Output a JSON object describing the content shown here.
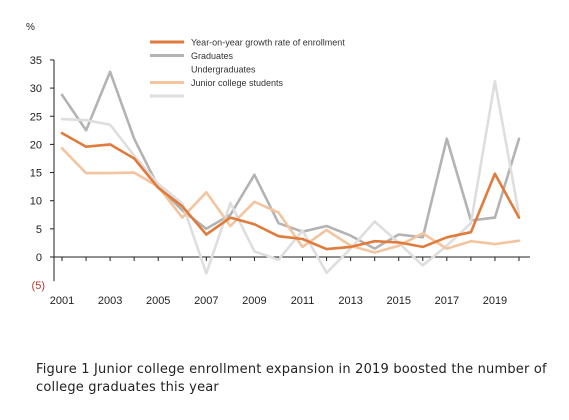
{
  "chart_data": {
    "type": "line",
    "ylabel": "%",
    "ylim": [
      -5,
      35
    ],
    "yticks": [
      35,
      30,
      25,
      20,
      15,
      10,
      5,
      0
    ],
    "ytick_labels": [
      "35",
      "30",
      "25",
      "20",
      "15",
      "10",
      "5",
      "0"
    ],
    "negative_tick": {
      "value": -5,
      "label": "(5)"
    },
    "xlim": [
      2001,
      2020
    ],
    "x": [
      2001,
      2002,
      2003,
      2004,
      2005,
      2006,
      2007,
      2008,
      2009,
      2010,
      2011,
      2012,
      2013,
      2014,
      2015,
      2016,
      2017,
      2018,
      2019,
      2020
    ],
    "xtick_values": [
      2001,
      2003,
      2005,
      2007,
      2009,
      2011,
      2013,
      2015,
      2017,
      2019
    ],
    "xtick_labels": [
      "2001",
      "2003",
      "2005",
      "2007",
      "2009",
      "2011",
      "2013",
      "2015",
      "2017",
      "2019"
    ],
    "grid": false,
    "legend_position": "top-center",
    "series": [
      {
        "name": "Graduates",
        "color": "#b3b3b3",
        "values": [
          28.8,
          22.5,
          32.9,
          21.0,
          12.5,
          8.3,
          5.0,
          7.5,
          14.6,
          6.0,
          4.5,
          5.5,
          3.8,
          1.5,
          4.0,
          3.5,
          21.0,
          6.5,
          7.0,
          21.0
        ]
      },
      {
        "name": "Undergraduates",
        "color": "#dedede",
        "values": [
          24.5,
          24.3,
          23.5,
          18.0,
          13.0,
          9.5,
          -2.9,
          9.6,
          1.0,
          -0.5,
          4.7,
          -2.8,
          1.5,
          6.3,
          2.5,
          -1.5,
          2.0,
          6.0,
          31.2,
          7.5
        ]
      },
      {
        "name": "Junior college students",
        "color": "#f3c49e",
        "values": [
          19.3,
          14.9,
          14.9,
          15.0,
          12.5,
          7.0,
          11.5,
          5.5,
          9.8,
          7.9,
          1.8,
          4.8,
          2.0,
          0.8,
          2.0,
          4.2,
          1.5,
          2.8,
          2.3,
          2.9
        ]
      },
      {
        "name": "Year-on-year growth rate of enrollment",
        "color": "#e07b3c",
        "values": [
          22.0,
          19.6,
          20.0,
          17.5,
          12.3,
          9.0,
          4.0,
          7.0,
          5.8,
          3.7,
          3.2,
          1.4,
          1.8,
          2.8,
          2.6,
          1.8,
          3.5,
          4.4,
          14.8,
          7.0
        ]
      }
    ],
    "legend": [
      {
        "label": "Year-on-year growth rate of enrollment",
        "color": "#e07b3c"
      },
      {
        "label": "Graduates",
        "color": "#b3b3b3"
      },
      {
        "label": "Undergraduates",
        "color": ""
      },
      {
        "label": "Junior college students",
        "color": "#f3c49e"
      },
      {
        "label": "",
        "color": "#dedede"
      }
    ]
  },
  "caption": "Figure 1 Junior college enrollment expansion in 2019 boosted the number of college graduates this year",
  "colors": {
    "axis": "#222222",
    "negative_tick": "#c0392b",
    "text": "#222222"
  }
}
